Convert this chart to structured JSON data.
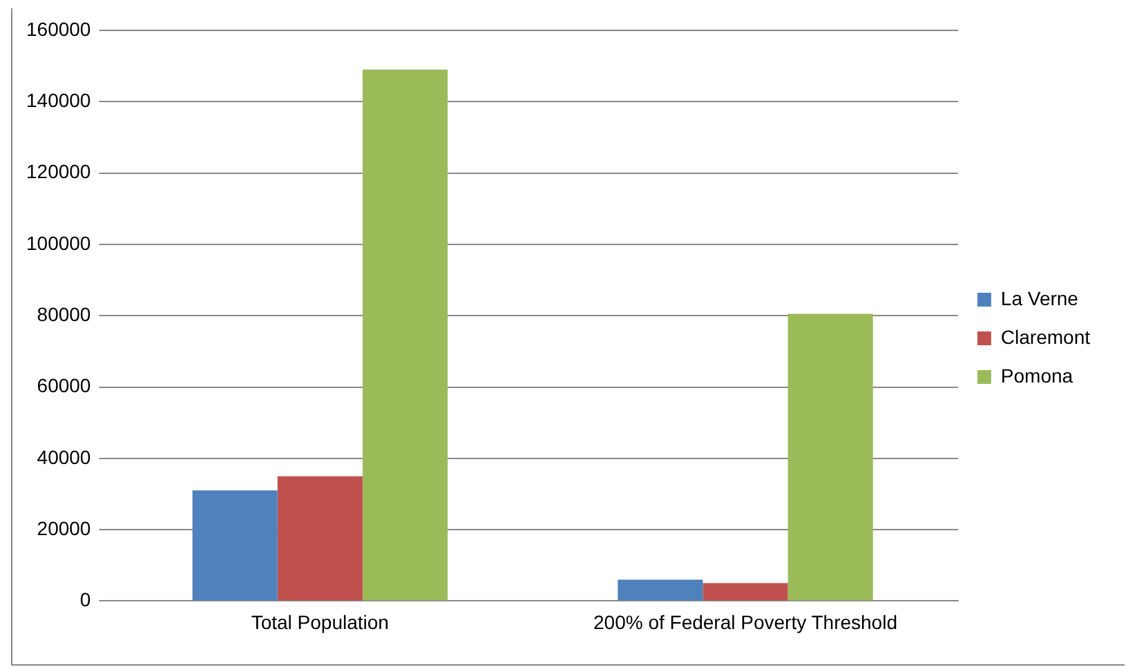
{
  "chart_data": {
    "type": "bar",
    "categories": [
      "Total Population",
      "200% of Federal Poverty Threshold"
    ],
    "series": [
      {
        "name": "La Verne",
        "color": "#4f81bd",
        "values": [
          31000,
          6000
        ]
      },
      {
        "name": "Claremont",
        "color": "#c0504d",
        "values": [
          35000,
          5000
        ]
      },
      {
        "name": "Pomona",
        "color": "#9bbb59",
        "values": [
          149000,
          80500
        ]
      }
    ],
    "ylim": [
      0,
      160000
    ],
    "yticks": [
      0,
      20000,
      40000,
      60000,
      80000,
      100000,
      120000,
      140000,
      160000
    ],
    "grid": "y",
    "legend": "right"
  }
}
